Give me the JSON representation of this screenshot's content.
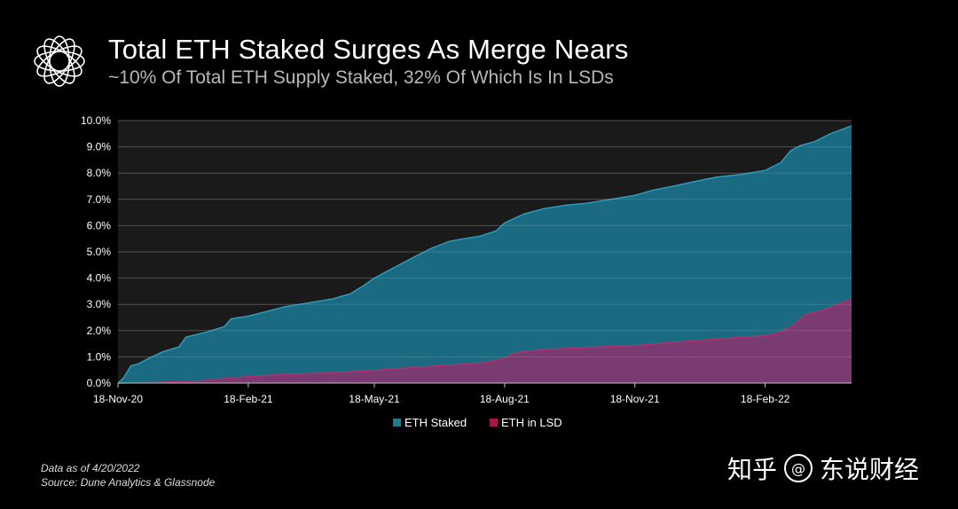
{
  "header": {
    "title": "Total ETH Staked Surges As Merge Nears",
    "subtitle": "~10% Of Total ETH Supply Staked, 32% Of Which Is In LSDs"
  },
  "footnote": {
    "line1": "Data as of 4/20/2022",
    "line2": "Source: Dune Analytics & Glassnode"
  },
  "watermark": {
    "text1": "知乎",
    "badge": "@",
    "text2": "东说财经"
  },
  "colors": {
    "background": "#000000",
    "plot_background": "#1a1a1a",
    "eth_staked": "#1a6b82",
    "eth_staked_line": "#2c9ab8",
    "eth_in_lsd": "#7a3b72",
    "eth_in_lsd_line": "#b0306a",
    "legend_staked": "#1f7a92",
    "legend_lsd": "#a8164e",
    "grid": "#3a3a3a"
  },
  "chart_data": {
    "type": "area",
    "title": "Total ETH Staked Surges As Merge Nears",
    "xlabel": "",
    "ylabel": "",
    "x_tick_labels": [
      "18-Nov-20",
      "18-Feb-21",
      "18-May-21",
      "18-Aug-21",
      "18-Nov-21",
      "18-Feb-22"
    ],
    "y_tick_labels": [
      "0.0%",
      "1.0%",
      "2.0%",
      "3.0%",
      "4.0%",
      "5.0%",
      "6.0%",
      "7.0%",
      "8.0%",
      "9.0%",
      "10.0%"
    ],
    "ylim": [
      0,
      10
    ],
    "xlim": [
      "2020-11-18",
      "2022-04-20"
    ],
    "grid": true,
    "legend_position": "bottom",
    "series": [
      {
        "name": "ETH Staked",
        "points": [
          [
            "2020-11-18",
            0.0
          ],
          [
            "2020-11-22",
            0.2
          ],
          [
            "2020-11-27",
            0.65
          ],
          [
            "2020-12-03",
            0.75
          ],
          [
            "2020-12-10",
            0.95
          ],
          [
            "2020-12-20",
            1.2
          ],
          [
            "2020-12-31",
            1.38
          ],
          [
            "2021-01-05",
            1.75
          ],
          [
            "2021-01-20",
            1.95
          ],
          [
            "2021-02-01",
            2.15
          ],
          [
            "2021-02-06",
            2.45
          ],
          [
            "2021-02-18",
            2.55
          ],
          [
            "2021-03-01",
            2.7
          ],
          [
            "2021-03-15",
            2.9
          ],
          [
            "2021-04-01",
            3.05
          ],
          [
            "2021-04-18",
            3.2
          ],
          [
            "2021-05-01",
            3.4
          ],
          [
            "2021-05-10",
            3.7
          ],
          [
            "2021-05-18",
            4.0
          ],
          [
            "2021-06-01",
            4.4
          ],
          [
            "2021-06-15",
            4.8
          ],
          [
            "2021-06-28",
            5.15
          ],
          [
            "2021-07-10",
            5.4
          ],
          [
            "2021-07-20",
            5.5
          ],
          [
            "2021-08-01",
            5.6
          ],
          [
            "2021-08-12",
            5.8
          ],
          [
            "2021-08-18",
            6.1
          ],
          [
            "2021-09-01",
            6.45
          ],
          [
            "2021-09-15",
            6.65
          ],
          [
            "2021-10-01",
            6.78
          ],
          [
            "2021-10-15",
            6.85
          ],
          [
            "2021-11-01",
            7.0
          ],
          [
            "2021-11-18",
            7.15
          ],
          [
            "2021-12-01",
            7.35
          ],
          [
            "2021-12-15",
            7.5
          ],
          [
            "2022-01-01",
            7.7
          ],
          [
            "2022-01-15",
            7.85
          ],
          [
            "2022-02-01",
            7.95
          ],
          [
            "2022-02-18",
            8.1
          ],
          [
            "2022-03-01",
            8.4
          ],
          [
            "2022-03-08",
            8.85
          ],
          [
            "2022-03-15",
            9.05
          ],
          [
            "2022-03-25",
            9.2
          ],
          [
            "2022-04-05",
            9.5
          ],
          [
            "2022-04-20",
            9.8
          ]
        ]
      },
      {
        "name": "ETH in LSD",
        "points": [
          [
            "2020-11-18",
            0.0
          ],
          [
            "2020-12-15",
            0.02
          ],
          [
            "2021-01-15",
            0.08
          ],
          [
            "2021-02-18",
            0.25
          ],
          [
            "2021-03-15",
            0.33
          ],
          [
            "2021-04-15",
            0.38
          ],
          [
            "2021-05-18",
            0.48
          ],
          [
            "2021-06-15",
            0.6
          ],
          [
            "2021-07-15",
            0.7
          ],
          [
            "2021-08-05",
            0.78
          ],
          [
            "2021-08-18",
            0.95
          ],
          [
            "2021-08-25",
            1.15
          ],
          [
            "2021-09-15",
            1.28
          ],
          [
            "2021-10-15",
            1.36
          ],
          [
            "2021-11-18",
            1.43
          ],
          [
            "2021-12-15",
            1.55
          ],
          [
            "2022-01-15",
            1.68
          ],
          [
            "2022-02-18",
            1.8
          ],
          [
            "2022-03-01",
            1.95
          ],
          [
            "2022-03-10",
            2.2
          ],
          [
            "2022-03-18",
            2.6
          ],
          [
            "2022-04-01",
            2.8
          ],
          [
            "2022-04-20",
            3.2
          ]
        ]
      }
    ]
  }
}
